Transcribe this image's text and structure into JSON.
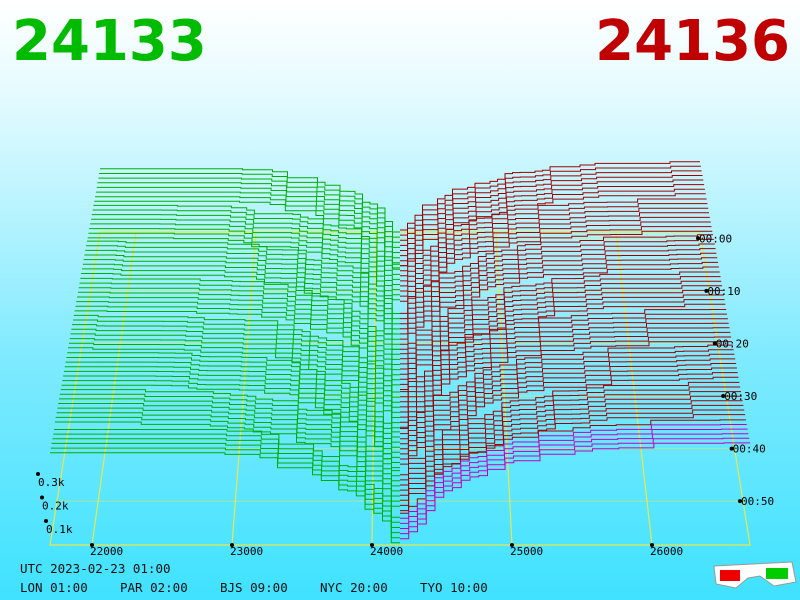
{
  "header": {
    "bid": "24133",
    "ask": "24136"
  },
  "price_axis": {
    "labels": [
      "22000",
      "23000",
      "24000",
      "25000",
      "26000"
    ]
  },
  "time_axis": {
    "labels": [
      "00:00",
      "00:10",
      "00:20",
      "00:30",
      "00:40",
      "00:50"
    ]
  },
  "depth_axis": {
    "labels": [
      "0.3k",
      "0.2k",
      "0.1k"
    ]
  },
  "footer": {
    "utc": "UTC 2023-02-23 01:00",
    "clocks": [
      "LON 01:00",
      "PAR 02:00",
      "BJS 09:00",
      "NYC 20:00",
      "TYO 10:00"
    ]
  }
}
